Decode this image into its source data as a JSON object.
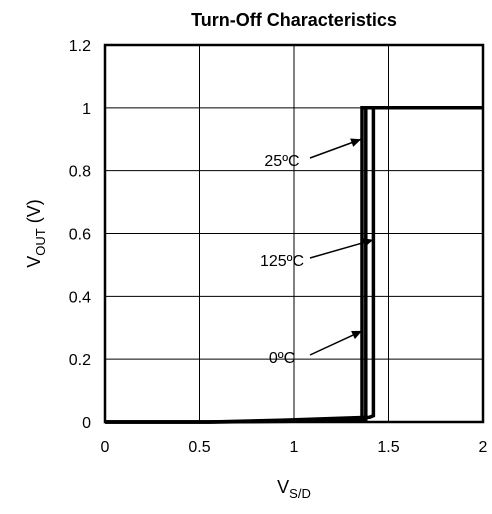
{
  "chart_data": {
    "type": "line",
    "title": "Turn-Off Characteristics",
    "xlabel": {
      "main": "V",
      "sub": "S/D"
    },
    "ylabel": {
      "main": "V",
      "sub": "OUT",
      "suffix": " (V)"
    },
    "xlim": [
      0,
      2
    ],
    "ylim": [
      0,
      1.2
    ],
    "xticks": [
      0,
      0.5,
      1,
      1.5,
      2
    ],
    "xtick_labels": [
      "0",
      "0.5",
      "1",
      "1.5",
      "2"
    ],
    "yticks": [
      0,
      0.2,
      0.4,
      0.6,
      0.8,
      1,
      1.2
    ],
    "ytick_labels": [
      "0",
      "0.2",
      "0.4",
      "0.6",
      "0.8",
      "1",
      "1.2"
    ],
    "grid": true,
    "series": [
      {
        "name": "25ºC",
        "x": [
          0,
          0.55,
          0.95,
          1.33,
          1.36,
          1.36,
          2.0
        ],
        "y": [
          0,
          0,
          0.003,
          0.008,
          0.01,
          1.0,
          1.0
        ]
      },
      {
        "name": "125ºC",
        "x": [
          0,
          0.55,
          0.95,
          1.4,
          1.42,
          1.42,
          2.0
        ],
        "y": [
          0,
          0,
          0.006,
          0.015,
          0.02,
          1.0,
          1.0
        ]
      },
      {
        "name": "0ºC",
        "x": [
          0,
          0.55,
          0.95,
          1.34,
          1.38,
          1.38,
          2.0
        ],
        "y": [
          0,
          0,
          0.002,
          0.006,
          0.008,
          1.0,
          1.0
        ]
      }
    ],
    "annotations": [
      {
        "text": "25ºC",
        "target_x": 1.355,
        "target_y": 0.9
      },
      {
        "text": "125ºC",
        "target_x": 1.42,
        "target_y": 0.58
      },
      {
        "text": "0ºC",
        "target_x": 1.36,
        "target_y": 0.29
      }
    ]
  }
}
